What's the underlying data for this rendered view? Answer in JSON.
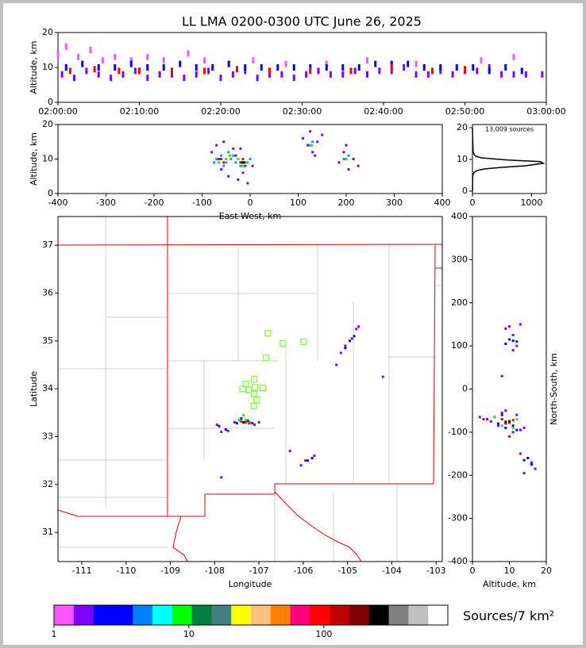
{
  "chart_data": [
    {
      "type": "scatter",
      "title": "LL LMA 0200-0300 UTC June 26, 2025",
      "ylabel": "Altitude, km",
      "xlim": [
        0,
        60
      ],
      "xticks": [
        {
          "value": 0,
          "label": "02:00:00"
        },
        {
          "value": 10,
          "label": "02:10:00"
        },
        {
          "value": 20,
          "label": "02:20:00"
        },
        {
          "value": 30,
          "label": "02:30:00"
        },
        {
          "value": 40,
          "label": "02:40:00"
        },
        {
          "value": 50,
          "label": "02:50:00"
        },
        {
          "value": 60,
          "label": "03:00:00"
        }
      ],
      "ylim": [
        0,
        20
      ],
      "yticks": [
        0,
        10,
        20
      ],
      "series": [
        {
          "color": "#8000ff",
          "x": [
            0.5,
            2,
            3.5,
            5,
            6.5,
            8,
            9.5,
            11,
            12.5,
            14,
            15.5,
            17,
            18.5,
            20,
            21.5,
            23,
            24.5,
            26,
            27.5,
            29,
            30.5,
            32,
            33.5,
            35,
            36.5,
            38,
            39.5,
            41,
            42.5,
            44,
            45.5,
            47,
            48.5,
            50,
            51.5,
            53,
            54.5,
            56,
            57.5,
            59.5
          ],
          "y": [
            8,
            7,
            9,
            8,
            7,
            8,
            9,
            7,
            8,
            8,
            7,
            8,
            9,
            7,
            8,
            9,
            7,
            8,
            8,
            7,
            8,
            9,
            8,
            8,
            9,
            8,
            9,
            9,
            10,
            8,
            8,
            9,
            8,
            9,
            9,
            10,
            8,
            8,
            8,
            8
          ]
        },
        {
          "color": "#ff55ff",
          "x": [
            0,
            1,
            2.5,
            4,
            5.5,
            7,
            9,
            11,
            13,
            16,
            18,
            21,
            24,
            28,
            33,
            38,
            44,
            52,
            56
          ],
          "y": [
            14,
            16,
            13,
            15,
            12,
            13,
            12,
            13,
            12,
            14,
            12,
            11,
            12,
            11,
            11,
            12,
            11,
            12,
            13
          ]
        },
        {
          "color": "#0000ff",
          "x": [
            1,
            3,
            5,
            7,
            9,
            11,
            13,
            15,
            17,
            19,
            21,
            23,
            25,
            27,
            29,
            31,
            33,
            35,
            37,
            39,
            41,
            43,
            45,
            47,
            49,
            51,
            53,
            55,
            57
          ],
          "y": [
            10,
            11,
            10,
            10,
            11,
            10,
            10,
            11,
            10,
            10,
            11,
            10,
            10,
            10,
            10,
            10,
            10,
            10,
            10,
            11,
            11,
            11,
            10,
            10,
            10,
            10,
            9,
            10,
            9
          ]
        },
        {
          "color": "#ff0000",
          "x": [
            1.5,
            4.5,
            7.5,
            10,
            14,
            18,
            22,
            26,
            31,
            36,
            41,
            46,
            50
          ],
          "y": [
            9,
            9.5,
            9,
            9,
            9,
            9,
            9.5,
            9,
            9,
            9,
            10,
            9,
            9.5
          ]
        }
      ]
    },
    {
      "type": "scatter",
      "xlabel": "East-West, km",
      "ylabel": "Altitude, km",
      "xlim": [
        -400,
        400
      ],
      "xticks": [
        -400,
        -300,
        -200,
        -100,
        0,
        100,
        200,
        300,
        400
      ],
      "ylim": [
        0,
        20
      ],
      "yticks": [
        0,
        10,
        20
      ],
      "series": [
        {
          "color": "#8000ff",
          "x": [
            -80,
            -70,
            -60,
            -45,
            -35,
            -25,
            -15,
            -5,
            5,
            -65,
            -55,
            -30,
            -20,
            110,
            120,
            130,
            140,
            150,
            125,
            135,
            185,
            195,
            205,
            215,
            225,
            200
          ],
          "y": [
            12,
            14,
            7,
            5,
            13,
            4,
            6,
            3,
            8,
            10,
            15,
            11,
            13,
            16,
            14,
            12,
            15,
            17,
            18,
            11,
            9,
            12,
            7,
            10,
            8,
            14
          ]
        },
        {
          "color": "#00a0ff",
          "x": [
            -70,
            -60,
            -50,
            -40,
            -30,
            -20,
            -10,
            0,
            -55,
            -45,
            125,
            130,
            195,
            205,
            -75,
            -35
          ],
          "y": [
            10,
            11,
            9,
            10,
            9,
            8,
            9,
            10,
            8,
            12,
            14,
            15,
            10,
            11,
            9,
            11
          ]
        },
        {
          "color": "#00ff00",
          "x": [
            -65,
            -50,
            -42,
            -25,
            -15,
            -5,
            200,
            128
          ],
          "y": [
            9,
            10,
            11,
            10,
            8,
            9,
            10,
            14
          ]
        },
        {
          "color": "#ff0000",
          "x": [
            -60,
            -55,
            -20,
            -15,
            -10
          ],
          "y": [
            10,
            9,
            9,
            10,
            8
          ]
        },
        {
          "color": "#000000",
          "x": [
            -17,
            -13
          ],
          "y": [
            9,
            9
          ]
        }
      ]
    },
    {
      "type": "line",
      "annotation": "13,009 sources",
      "xlim": [
        0,
        1250
      ],
      "xticks": [
        0,
        1000
      ],
      "ylim": [
        -0.75,
        21
      ],
      "yticks": [
        0,
        10,
        20
      ],
      "series": [
        {
          "color": "#000000",
          "x": [
            0,
            5,
            30,
            80,
            200,
            500,
            900,
            1200,
            1150,
            600,
            150,
            60,
            30,
            10,
            0
          ],
          "y": [
            0,
            5,
            6,
            6.5,
            7,
            7.5,
            8,
            8.8,
            9.3,
            9.8,
            10.5,
            11,
            11.5,
            12.5,
            20
          ]
        }
      ]
    },
    {
      "type": "map",
      "xlabel": "Longitude",
      "ylabel": "Latitude",
      "xlim": [
        -111.54,
        -102.86
      ],
      "xticks": [
        -111,
        -110,
        -109,
        -108,
        -107,
        -106,
        -105,
        -104,
        -103
      ],
      "ylim": [
        30.39,
        37.6
      ],
      "yticks": [
        31,
        32,
        33,
        34,
        35,
        36,
        37
      ],
      "stations": {
        "color": "#80ff40",
        "x": [
          -106.8,
          -106.46,
          -105.99,
          -106.84,
          -107.11,
          -107.3,
          -107.09,
          -107.37,
          -107.23,
          -106.91,
          -107.11,
          -107.05,
          -107.12
        ],
        "y": [
          35.16,
          34.95,
          34.98,
          34.65,
          34.2,
          34.1,
          34.03,
          34.0,
          33.98,
          34.02,
          33.89,
          33.77,
          33.64
        ]
      },
      "series": [
        {
          "color": "#8000ff",
          "x": [
            -107.95,
            -107.85,
            -107.7,
            -107.55,
            -107.1,
            -107.0,
            -105.15,
            -105.05,
            -104.9,
            -104.8,
            -104.75,
            -106.05,
            -105.95,
            -105.75,
            -107.85,
            -105.25,
            -106.3,
            -104.2
          ],
          "y": [
            33.25,
            33.1,
            33.12,
            33.3,
            33.25,
            33.3,
            34.75,
            34.9,
            35.05,
            35.25,
            35.3,
            32.4,
            32.5,
            32.6,
            32.15,
            34.5,
            32.7,
            34.25
          ]
        },
        {
          "color": "#0000ff",
          "x": [
            -107.9,
            -107.75,
            -107.5,
            -107.4,
            -107.25,
            -107.15,
            -105.05,
            -104.95,
            -104.85,
            -105.9,
            -105.8
          ],
          "y": [
            33.22,
            33.15,
            33.28,
            33.38,
            33.33,
            33.28,
            34.85,
            35.0,
            35.1,
            32.5,
            32.55
          ]
        },
        {
          "color": "#00ff00",
          "x": [
            -107.45,
            -107.35,
            -107.3,
            -107.2
          ],
          "y": [
            33.35,
            33.45,
            33.35,
            33.3
          ]
        },
        {
          "color": "#ff0000",
          "x": [
            -107.4,
            -107.3,
            -107.22
          ],
          "y": [
            33.32,
            33.3,
            33.28
          ]
        },
        {
          "color": "#000000",
          "x": [
            -107.35
          ],
          "y": [
            33.3
          ]
        }
      ]
    },
    {
      "type": "scatter",
      "xlabel": "Altitude, km",
      "ylabel": "North-South, km",
      "ylabel_side": "right",
      "xlim": [
        0,
        20
      ],
      "xticks": [
        0,
        10,
        20
      ],
      "ylim": [
        -400,
        400
      ],
      "yticks": [
        -400,
        -300,
        -200,
        -100,
        0,
        100,
        200,
        300,
        400
      ],
      "series": [
        {
          "color": "#8000ff",
          "x": [
            4,
            6,
            8,
            9,
            10,
            11,
            12,
            13,
            14,
            9,
            10,
            11,
            12,
            13,
            8,
            15,
            16,
            17,
            14,
            13,
            11,
            2,
            3,
            5,
            7
          ],
          "y": [
            -70,
            -65,
            -55,
            -50,
            -110,
            -100,
            -60,
            -95,
            -90,
            140,
            145,
            125,
            100,
            150,
            30,
            -160,
            -170,
            -185,
            -195,
            -150,
            90,
            -65,
            -70,
            -75,
            -85
          ]
        },
        {
          "color": "#0000ff",
          "x": [
            7,
            8,
            9,
            10,
            11,
            12,
            8,
            9,
            10,
            11,
            12,
            14,
            15,
            16
          ],
          "y": [
            -80,
            -70,
            -90,
            -75,
            -85,
            -95,
            -60,
            105,
            115,
            112,
            110,
            -165,
            -160,
            -175
          ]
        },
        {
          "color": "#00ff00",
          "x": [
            6,
            8,
            10,
            12,
            9,
            11
          ],
          "y": [
            -65,
            -85,
            -75,
            -70,
            -80,
            -90
          ]
        },
        {
          "color": "#ff0000",
          "x": [
            8,
            9,
            10,
            11
          ],
          "y": [
            -70,
            -80,
            -78,
            -72
          ]
        },
        {
          "color": "#000000",
          "x": [
            9,
            10
          ],
          "y": [
            -76,
            -75
          ]
        }
      ]
    },
    {
      "type": "colorbar",
      "label": "Sources/7 km²",
      "log": true,
      "xlim": [
        1,
        830
      ],
      "xticks": [
        1,
        10,
        100
      ],
      "colors": [
        "#ff55ff",
        "#8000ff",
        "#0000ff",
        "#0000ff",
        "#0080ff",
        "#00ffff",
        "#00ff00",
        "#008040",
        "#408080",
        "#ffff00",
        "#ffc080",
        "#ff8000",
        "#ff0080",
        "#ff0000",
        "#c00000",
        "#800000",
        "#000000",
        "#808080",
        "#c0c0c0",
        "#ffffff"
      ]
    }
  ]
}
